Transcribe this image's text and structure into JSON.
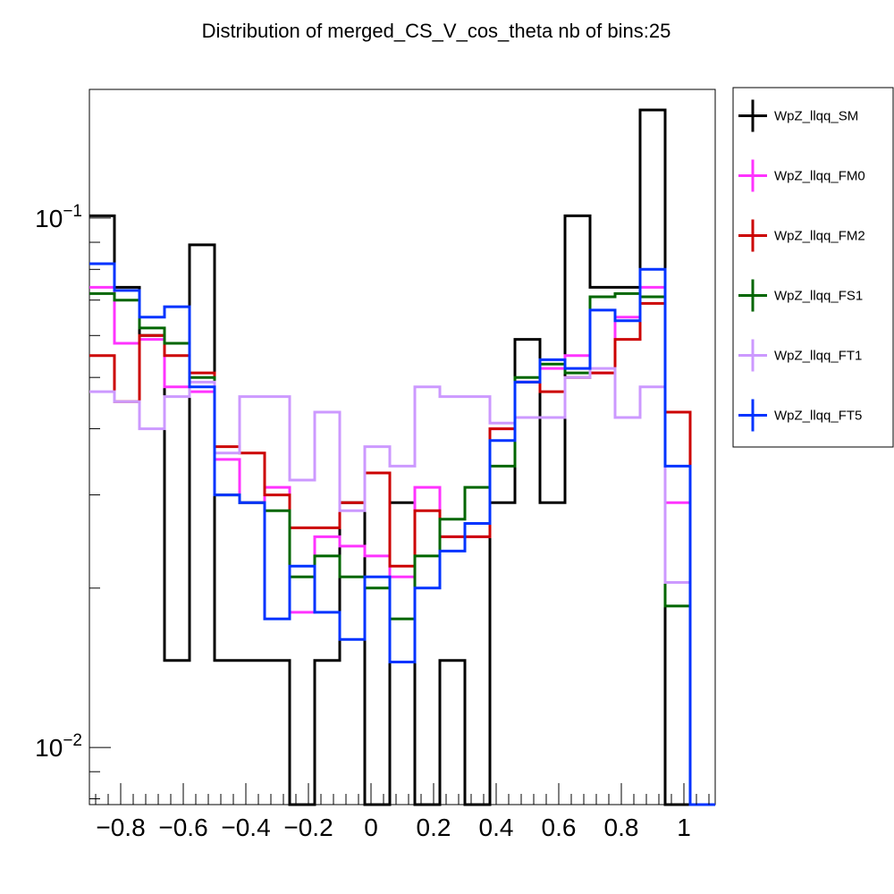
{
  "chart_data": {
    "type": "line",
    "title": "Distribution of merged_CS_V_cos_theta nb of bins:25",
    "xlabel": "",
    "ylabel": "",
    "xlim": [
      -0.9,
      1.1
    ],
    "ylim": [
      0.0078,
      0.175
    ],
    "y_scale": "log",
    "x_ticks": [
      -0.8,
      -0.6,
      -0.4,
      -0.2,
      0,
      0.2,
      0.4,
      0.6,
      0.8,
      1
    ],
    "x_tick_labels": [
      "−0.8",
      "−0.6",
      "−0.4",
      "−0.2",
      "0",
      "0.2",
      "0.4",
      "0.6",
      "0.8",
      "1"
    ],
    "y_ticks": [
      0.01,
      0.1
    ],
    "y_tick_bases": [
      "10",
      "10"
    ],
    "y_tick_exponents": [
      "−2",
      "−1"
    ],
    "bin_edges": [
      -0.9,
      -0.82,
      -0.74,
      -0.66,
      -0.58,
      -0.5,
      -0.42,
      -0.34,
      -0.26,
      -0.18,
      -0.1,
      -0.02,
      0.06,
      0.14,
      0.22,
      0.3,
      0.38,
      0.46,
      0.54,
      0.62,
      0.7,
      0.78,
      0.86,
      0.94,
      1.02,
      1.1
    ],
    "legend_position": "right",
    "series": [
      {
        "name": "WpZ_llqq_SM",
        "color": "#000000",
        "values": [
          0.101,
          0.074,
          0.06,
          0.0146,
          0.089,
          0.0146,
          0.0146,
          0.0146,
          0.0073,
          0.0146,
          0.029,
          0.0073,
          0.029,
          0.0073,
          0.0146,
          0.0073,
          0.029,
          0.059,
          0.029,
          0.101,
          0.074,
          0.074,
          0.16,
          0.0073,
          0.0073
        ]
      },
      {
        "name": "WpZ_llqq_FM0",
        "color": "#ff33ff",
        "values": [
          0.074,
          0.058,
          0.059,
          0.048,
          0.047,
          0.035,
          0.029,
          0.031,
          0.018,
          0.025,
          0.024,
          0.023,
          0.021,
          0.031,
          0.025,
          0.025,
          0.04,
          0.049,
          0.052,
          0.055,
          0.051,
          0.065,
          0.074,
          0.029,
          0.0073
        ]
      },
      {
        "name": "WpZ_llqq_FM2",
        "color": "#cc0000",
        "values": [
          0.055,
          0.045,
          0.06,
          0.055,
          0.051,
          0.037,
          0.036,
          0.03,
          0.026,
          0.026,
          0.029,
          0.033,
          0.022,
          0.028,
          0.025,
          0.025,
          0.04,
          0.049,
          0.047,
          0.05,
          0.051,
          0.059,
          0.069,
          0.043,
          0.0073
        ]
      },
      {
        "name": "WpZ_llqq_FS1",
        "color": "#006600",
        "values": [
          0.072,
          0.07,
          0.062,
          0.058,
          0.05,
          0.03,
          0.029,
          0.028,
          0.021,
          0.023,
          0.021,
          0.02,
          0.0175,
          0.023,
          0.027,
          0.031,
          0.034,
          0.05,
          0.053,
          0.051,
          0.071,
          0.072,
          0.071,
          0.0185,
          0.0073
        ]
      },
      {
        "name": "WpZ_llqq_FT1",
        "color": "#cc99ff",
        "values": [
          0.047,
          0.045,
          0.04,
          0.046,
          0.049,
          0.036,
          0.046,
          0.046,
          0.032,
          0.043,
          0.028,
          0.037,
          0.034,
          0.048,
          0.046,
          0.046,
          0.041,
          0.042,
          0.042,
          0.05,
          0.052,
          0.042,
          0.048,
          0.0205,
          0.0073
        ]
      },
      {
        "name": "WpZ_llqq_FT5",
        "color": "#0033ff",
        "values": [
          0.082,
          0.073,
          0.065,
          0.068,
          0.048,
          0.03,
          0.029,
          0.0175,
          0.022,
          0.018,
          0.016,
          0.021,
          0.0145,
          0.02,
          0.0235,
          0.0265,
          0.038,
          0.049,
          0.054,
          0.052,
          0.067,
          0.064,
          0.08,
          0.034,
          0.0073
        ]
      }
    ]
  }
}
